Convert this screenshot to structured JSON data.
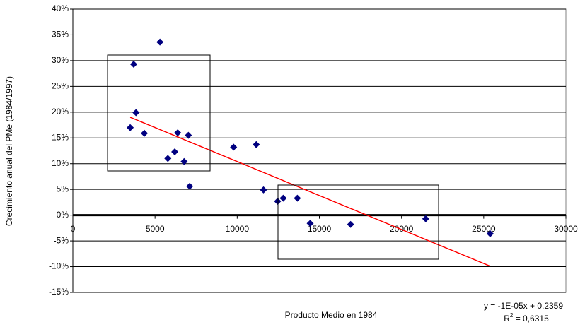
{
  "chart_data": {
    "type": "scatter",
    "x_label": "Producto Medio en 1984",
    "y_label": "Crecimiento anual del PMe (1984/1997)",
    "xlim": [
      0,
      30000
    ],
    "xticks": [
      0,
      5000,
      10000,
      15000,
      20000,
      25000,
      30000
    ],
    "ylim": [
      -15,
      40
    ],
    "yticks": [
      {
        "value": -15,
        "label": "-15%"
      },
      {
        "value": -10,
        "label": "-10%"
      },
      {
        "value": -5,
        "label": "-5%"
      },
      {
        "value": 0,
        "label": "0%"
      },
      {
        "value": 5,
        "label": "5%"
      },
      {
        "value": 10,
        "label": "10%"
      },
      {
        "value": 15,
        "label": "15%"
      },
      {
        "value": 20,
        "label": "20%"
      },
      {
        "value": 25,
        "label": "25%"
      },
      {
        "value": 30,
        "label": "30%"
      },
      {
        "value": 35,
        "label": "35%"
      },
      {
        "value": 40,
        "label": "40%"
      }
    ],
    "grid": true,
    "series": [
      {
        "color": "#000080",
        "x": [
          5300,
          3700,
          3840,
          3490,
          4350,
          6380,
          7030,
          6200,
          5780,
          6770,
          7110,
          9780,
          11160,
          11600,
          12460,
          12800,
          13660,
          14440,
          16900,
          21470,
          25390
        ],
        "values": [
          33.6,
          29.3,
          19.9,
          17.0,
          15.9,
          16.0,
          15.5,
          12.3,
          11.0,
          10.4,
          5.6,
          13.2,
          13.7,
          4.9,
          2.7,
          3.3,
          3.3,
          -1.6,
          -1.8,
          -0.7,
          -3.6
        ]
      }
    ],
    "trendline": {
      "color": "#ff0000",
      "x": [
        3490,
        25390
      ],
      "values": [
        19.0,
        -9.9
      ]
    },
    "equation": "y = -1E-05x + 0,2359",
    "r_squared": {
      "prefix": "R",
      "sup": "2",
      "text": " = 0,6315"
    }
  }
}
